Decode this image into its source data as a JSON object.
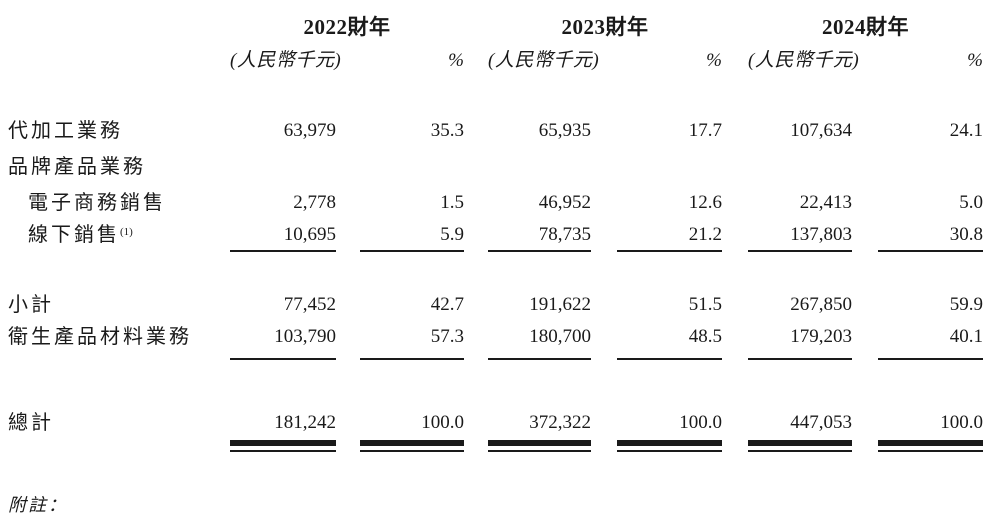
{
  "table": {
    "year_headers": [
      "2022財年",
      "2023財年",
      "2024財年"
    ],
    "unit_label": "(人民幣千元)",
    "percent_label": "%",
    "rows": [
      {
        "label": "代加工業務",
        "indent": false,
        "values": [
          "63,979",
          "35.3",
          "65,935",
          "17.7",
          "107,634",
          "24.1"
        ]
      },
      {
        "label": "品牌產品業務",
        "indent": false,
        "values": [
          "",
          "",
          "",
          "",
          "",
          ""
        ]
      },
      {
        "label": "電子商務銷售",
        "indent": true,
        "values": [
          "2,778",
          "1.5",
          "46,952",
          "12.6",
          "22,413",
          "5.0"
        ]
      },
      {
        "label": "線下銷售",
        "marker": "(1)",
        "indent": true,
        "underline": true,
        "values": [
          "10,695",
          "5.9",
          "78,735",
          "21.2",
          "137,803",
          "30.8"
        ]
      },
      {
        "label": "小計",
        "indent": false,
        "values": [
          "77,452",
          "42.7",
          "191,622",
          "51.5",
          "267,850",
          "59.9"
        ]
      },
      {
        "label": "衛生產品材料業務",
        "indent": false,
        "underline": true,
        "values": [
          "103,790",
          "57.3",
          "180,700",
          "48.5",
          "179,203",
          "40.1"
        ]
      },
      {
        "label": "總計",
        "indent": false,
        "double_rule": true,
        "values": [
          "181,242",
          "100.0",
          "372,322",
          "100.0",
          "447,053",
          "100.0"
        ]
      }
    ]
  },
  "footnote": {
    "label": "附註："
  }
}
